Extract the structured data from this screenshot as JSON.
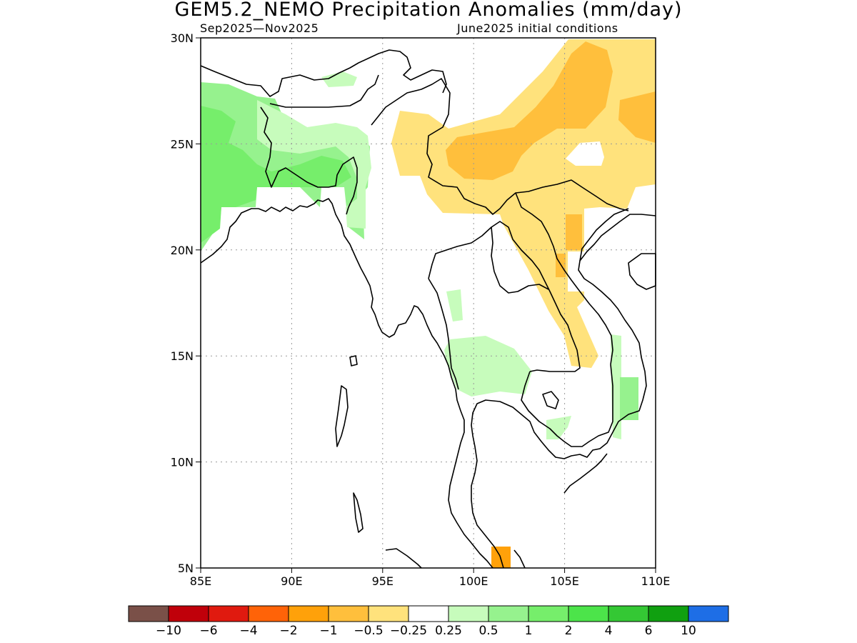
{
  "title": "GEM5.2_NEMO Precipitation Anomalies (mm/day)",
  "subtitle_left": "Sep2025—Nov2025",
  "subtitle_right": "June2025 initial conditions",
  "map": {
    "lon_range": [
      85,
      110
    ],
    "lat_range": [
      5,
      30
    ],
    "x_ticks": [
      "85E",
      "90E",
      "95E",
      "100E",
      "105E",
      "110E"
    ],
    "y_ticks": [
      "5N",
      "10N",
      "15N",
      "20N",
      "25N",
      "30N"
    ],
    "grid": "dotted",
    "colors": {
      "coast": "#000000",
      "grid": "#9a9a9a"
    }
  },
  "colorbar": {
    "colors": [
      "#7a5048",
      "#c0000a",
      "#e01a0f",
      "#ff6308",
      "#ffa10a",
      "#ffbf3c",
      "#ffe27c",
      "#ffffff",
      "#c7fcbc",
      "#96f28e",
      "#76ee6b",
      "#4ce44a",
      "#34c834",
      "#10a010",
      "#1e6ee6"
    ],
    "labels": [
      "−10",
      "−6",
      "−4",
      "−2",
      "−1",
      "−0.5",
      "−0.25",
      "0.25",
      "0.5",
      "1",
      "2",
      "4",
      "6",
      "10"
    ]
  }
}
